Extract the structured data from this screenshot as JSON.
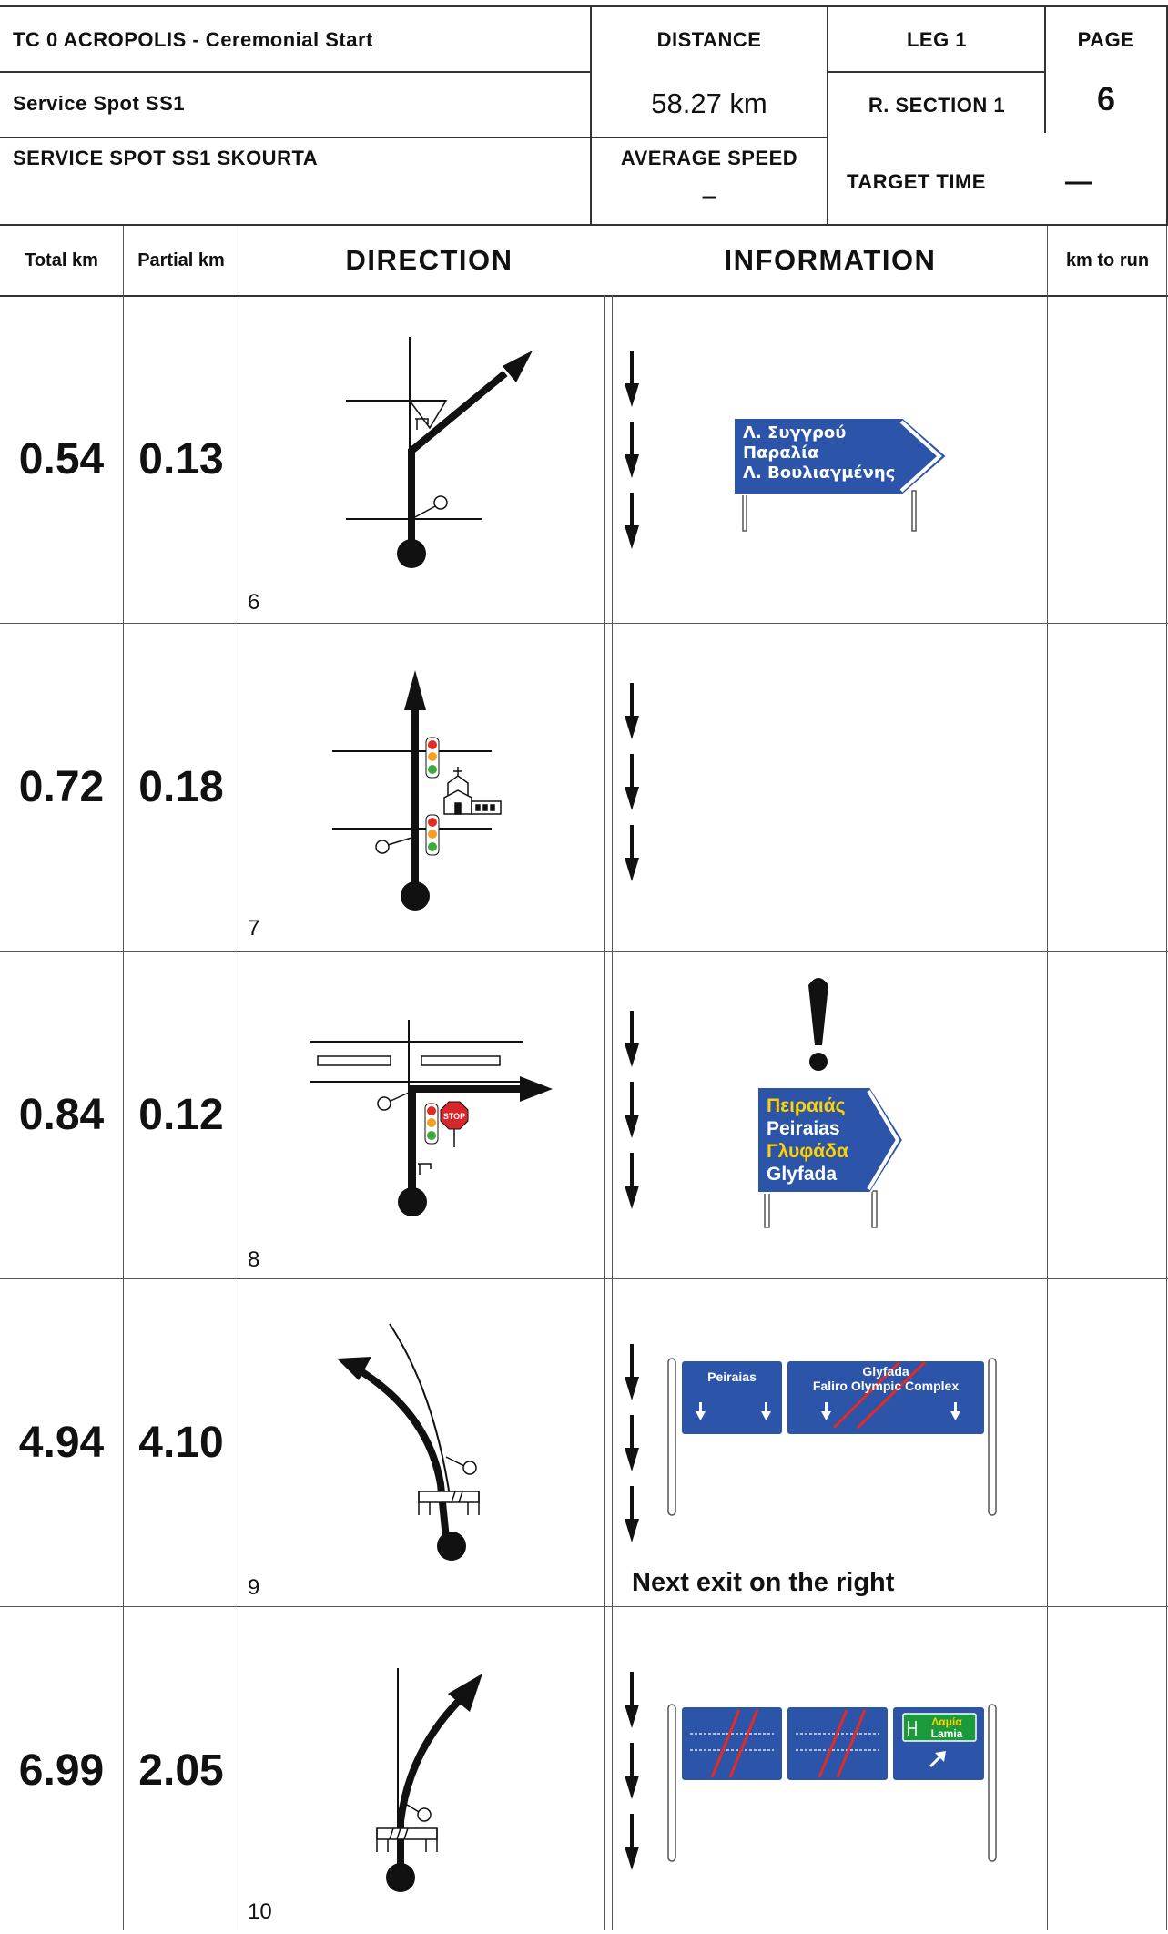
{
  "header": {
    "tc_title": "TC 0  ACROPOLIS - Ceremonial Start",
    "service_spot": "Service Spot SS1",
    "service_spot_name": "SERVICE SPOT SS1 SKOURTA",
    "distance_label": "DISTANCE",
    "distance_value": "58.27 km",
    "leg_label": "LEG  1",
    "section_label": "R. SECTION  1",
    "page_label": "PAGE",
    "page_value": "6",
    "avg_speed_label": "AVERAGE SPEED",
    "avg_speed_value": "–",
    "target_time_label": "TARGET TIME",
    "target_time_value": "—"
  },
  "columns": {
    "total_km": "Total km",
    "partial_km": "Partial km",
    "direction": "DIRECTION",
    "information": "INFORMATION",
    "km_to_run": "km to run"
  },
  "rows": [
    {
      "total": "0.54",
      "partial": "0.13",
      "number": "6",
      "sign": {
        "lines": [
          "Λ. Συγγρού",
          "Παραλία",
          "Λ. Βουλιαγμένης"
        ]
      }
    },
    {
      "total": "0.72",
      "partial": "0.18",
      "number": "7"
    },
    {
      "total": "0.84",
      "partial": "0.12",
      "number": "8",
      "stop_text": "STOP",
      "sign": {
        "lines": [
          "Πειραιάς",
          "Peiraias",
          "Γλυφάδα",
          "Glyfada"
        ]
      }
    },
    {
      "total": "4.94",
      "partial": "4.10",
      "number": "9",
      "gantry": {
        "left": "Peiraias",
        "right_line1": "Glyfada",
        "right_line2": "Faliro Olympic Complex"
      },
      "note": "Next exit on the right"
    },
    {
      "total": "6.99",
      "partial": "2.05",
      "number": "10",
      "gantry": {
        "panel_line1": "Λαμία",
        "panel_line2": "Lamia"
      }
    }
  ],
  "colors": {
    "sign_blue": "#2c54a8",
    "sign_yellow": "#ffd200",
    "traffic_red": "#e32b22",
    "traffic_orange": "#f6a020",
    "traffic_green": "#3bab3a",
    "motorway_green": "#1b9a3c",
    "stop_red": "#d8262b"
  }
}
